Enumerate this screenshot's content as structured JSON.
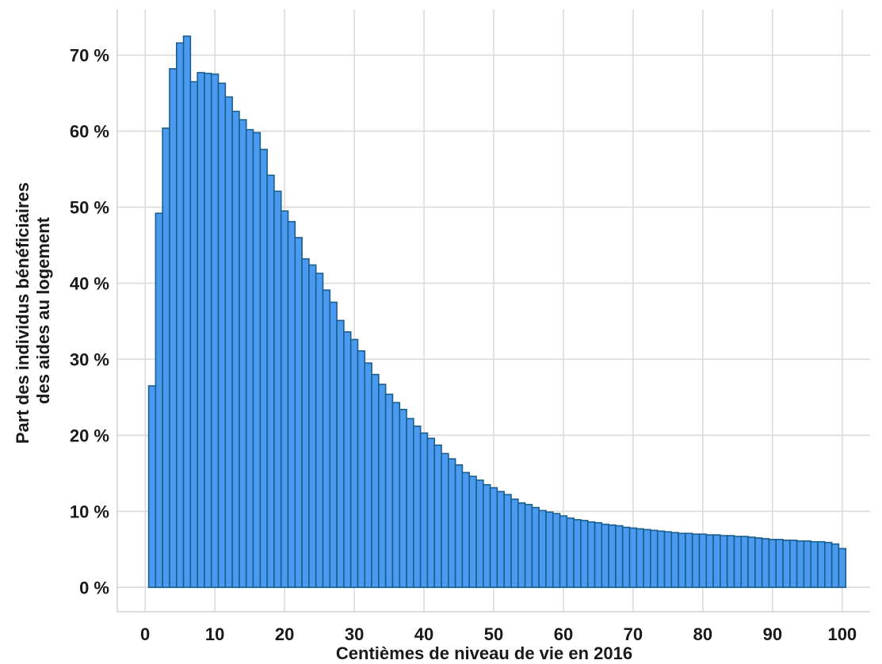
{
  "colors": {
    "bar_fill": "#4a9af2",
    "bar_edge": "#1a5f8c",
    "grid": "#d9d9d9",
    "axis": "#d0d0d0",
    "text": "#1a1a1a",
    "background": "#ffffff"
  },
  "chart_data": {
    "type": "bar",
    "title": "",
    "xlabel": "Centièmes de niveau de vie en 2016",
    "ylabel_lines": [
      "Part des individus bénéficiaires",
      "des aides au logement"
    ],
    "xlim": [
      -4,
      104
    ],
    "ylim": [
      -3.2,
      76.0
    ],
    "x_ticks": [
      0,
      10,
      20,
      30,
      40,
      50,
      60,
      70,
      80,
      90,
      100
    ],
    "x_tick_labels": [
      "0",
      "10",
      "20",
      "30",
      "40",
      "50",
      "60",
      "70",
      "80",
      "90",
      "100"
    ],
    "y_ticks": [
      0,
      10,
      20,
      30,
      40,
      50,
      60,
      70
    ],
    "y_tick_labels": [
      "0 %",
      "10 %",
      "20 %",
      "30 %",
      "40 %",
      "50 %",
      "60 %",
      "70 %"
    ],
    "grid": true,
    "categories": [
      1,
      2,
      3,
      4,
      5,
      6,
      7,
      8,
      9,
      10,
      11,
      12,
      13,
      14,
      15,
      16,
      17,
      18,
      19,
      20,
      21,
      22,
      23,
      24,
      25,
      26,
      27,
      28,
      29,
      30,
      31,
      32,
      33,
      34,
      35,
      36,
      37,
      38,
      39,
      40,
      41,
      42,
      43,
      44,
      45,
      46,
      47,
      48,
      49,
      50,
      51,
      52,
      53,
      54,
      55,
      56,
      57,
      58,
      59,
      60,
      61,
      62,
      63,
      64,
      65,
      66,
      67,
      68,
      69,
      70,
      71,
      72,
      73,
      74,
      75,
      76,
      77,
      78,
      79,
      80,
      81,
      82,
      83,
      84,
      85,
      86,
      87,
      88,
      89,
      90,
      91,
      92,
      93,
      94,
      95,
      96,
      97,
      98,
      99,
      100
    ],
    "values": [
      26.5,
      49.2,
      60.4,
      68.2,
      71.6,
      72.5,
      66.5,
      67.7,
      67.6,
      67.5,
      66.3,
      64.5,
      62.6,
      61.5,
      60.2,
      59.8,
      57.6,
      54.2,
      52.1,
      49.5,
      48.1,
      46.0,
      43.2,
      42.4,
      41.3,
      39.1,
      37.5,
      35.1,
      33.6,
      32.6,
      31.1,
      29.5,
      28.0,
      26.7,
      25.4,
      24.3,
      23.4,
      22.2,
      21.2,
      20.3,
      19.6,
      18.7,
      17.6,
      16.9,
      16.1,
      15.1,
      14.6,
      14.1,
      13.5,
      13.1,
      12.6,
      12.2,
      11.6,
      11.1,
      10.9,
      10.5,
      10.1,
      9.9,
      9.7,
      9.4,
      9.1,
      8.9,
      8.8,
      8.6,
      8.5,
      8.3,
      8.2,
      8.1,
      7.9,
      7.8,
      7.7,
      7.6,
      7.5,
      7.4,
      7.3,
      7.2,
      7.1,
      7.1,
      7.0,
      7.0,
      6.9,
      6.9,
      6.8,
      6.8,
      6.7,
      6.7,
      6.6,
      6.5,
      6.4,
      6.3,
      6.3,
      6.2,
      6.2,
      6.1,
      6.1,
      6.0,
      6.0,
      5.9,
      5.7,
      5.1
    ]
  }
}
